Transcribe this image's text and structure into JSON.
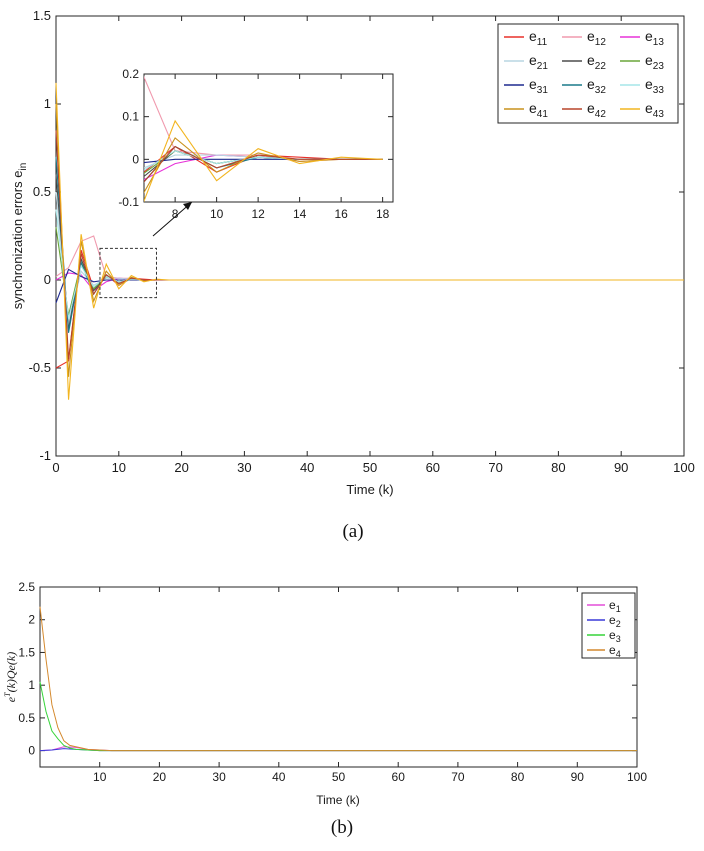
{
  "chart_data": [
    {
      "type": "line",
      "panel_label": "(a)",
      "xlabel": "Time (k)",
      "ylabel_main": "synchronization errors e",
      "ylabel_sub": "in",
      "xlim": [
        0,
        100
      ],
      "ylim": [
        -1,
        1.5
      ],
      "xticks": [
        0,
        10,
        20,
        30,
        40,
        50,
        60,
        70,
        80,
        90,
        100
      ],
      "yticks": [
        -1,
        -0.5,
        0,
        0.5,
        1,
        1.5
      ],
      "legend_position": "top-right",
      "legend_columns": 3,
      "series": [
        {
          "base": "e",
          "sub": "11",
          "color": "#e8302a",
          "x": [
            0,
            2,
            4,
            6,
            8,
            10,
            12,
            14,
            16,
            18,
            100
          ],
          "y": [
            -0.5,
            -0.46,
            0.17,
            -0.05,
            0.03,
            -0.03,
            0.01,
            0.005,
            0.0,
            0.0,
            0.0
          ]
        },
        {
          "base": "e",
          "sub": "12",
          "color": "#f09aae",
          "x": [
            0,
            2,
            4,
            6,
            8,
            10,
            12,
            14,
            16,
            18,
            100
          ],
          "y": [
            0.02,
            0.07,
            0.22,
            0.25,
            0.02,
            0.01,
            0.01,
            -0.005,
            0.0,
            0.0,
            0.0
          ]
        },
        {
          "base": "e",
          "sub": "13",
          "color": "#e733d8",
          "x": [
            0,
            2,
            4,
            6,
            8,
            10,
            12,
            14,
            16,
            18,
            100
          ],
          "y": [
            0.0,
            0.04,
            0.03,
            -0.06,
            -0.01,
            0.01,
            0.005,
            0.0,
            0.0,
            0.0,
            0.0
          ]
        },
        {
          "base": "e",
          "sub": "21",
          "color": "#b8d6e2",
          "x": [
            0,
            2,
            4,
            6,
            8,
            10,
            12,
            14,
            16,
            18,
            100
          ],
          "y": [
            0.5,
            -0.25,
            0.05,
            -0.03,
            0.01,
            0.01,
            0.005,
            0.0,
            0.0,
            0.0,
            0.0
          ]
        },
        {
          "base": "e",
          "sub": "22",
          "color": "#4d4d4d",
          "x": [
            0,
            2,
            4,
            6,
            8,
            10,
            12,
            14,
            16,
            18,
            100
          ],
          "y": [
            0.6,
            -0.28,
            0.12,
            -0.06,
            0.02,
            -0.01,
            0.005,
            0.0,
            0.0,
            0.0,
            0.0
          ]
        },
        {
          "base": "e",
          "sub": "23",
          "color": "#6aa53a",
          "x": [
            0,
            2,
            4,
            6,
            8,
            10,
            12,
            14,
            16,
            18,
            100
          ],
          "y": [
            0.3,
            -0.2,
            0.1,
            -0.05,
            0.02,
            -0.01,
            0.005,
            0.0,
            0.0,
            0.0,
            0.0
          ]
        },
        {
          "base": "e",
          "sub": "31",
          "color": "#1f2a8f",
          "x": [
            0,
            2,
            4,
            6,
            8,
            10,
            12,
            14,
            16,
            18,
            100
          ],
          "y": [
            -0.13,
            0.06,
            0.02,
            -0.01,
            0.0,
            0.0,
            0.0,
            0.0,
            0.0,
            0.0,
            0.0
          ]
        },
        {
          "base": "e",
          "sub": "32",
          "color": "#1a7a8a",
          "x": [
            0,
            2,
            4,
            6,
            8,
            10,
            12,
            14,
            16,
            18,
            100
          ],
          "y": [
            0.7,
            -0.3,
            0.1,
            -0.08,
            0.03,
            -0.02,
            0.005,
            0.0,
            0.0,
            0.0,
            0.0
          ]
        },
        {
          "base": "e",
          "sub": "33",
          "color": "#a6e6e8",
          "x": [
            0,
            2,
            4,
            6,
            8,
            10,
            12,
            14,
            16,
            18,
            100
          ],
          "y": [
            0.4,
            -0.22,
            0.08,
            -0.04,
            0.02,
            -0.01,
            0.005,
            0.0,
            0.0,
            0.0,
            0.0
          ]
        },
        {
          "base": "e",
          "sub": "41",
          "color": "#c8921d",
          "x": [
            0,
            2,
            4,
            6,
            8,
            10,
            12,
            14,
            16,
            18,
            100
          ],
          "y": [
            1.0,
            -0.55,
            0.22,
            -0.12,
            0.05,
            -0.03,
            0.015,
            -0.005,
            0.0,
            0.0,
            0.0
          ]
        },
        {
          "base": "e",
          "sub": "42",
          "color": "#b8452a",
          "x": [
            0,
            2,
            4,
            6,
            8,
            10,
            12,
            14,
            16,
            18,
            100
          ],
          "y": [
            0.85,
            -0.45,
            0.15,
            -0.08,
            0.03,
            -0.02,
            0.01,
            0.0,
            0.0,
            0.0,
            0.0
          ]
        },
        {
          "base": "e",
          "sub": "43",
          "color": "#f2b520",
          "x": [
            0,
            2,
            4,
            6,
            8,
            10,
            12,
            14,
            16,
            18,
            100
          ],
          "y": [
            1.12,
            -0.68,
            0.26,
            -0.16,
            0.09,
            -0.05,
            0.025,
            -0.01,
            0.005,
            0.0,
            0.0
          ]
        }
      ],
      "inset": {
        "xlim": [
          6.5,
          18.5
        ],
        "ylim": [
          -0.1,
          0.2
        ],
        "xticks": [
          8,
          10,
          12,
          14,
          16,
          18
        ],
        "yticks": [
          -0.1,
          0,
          0.1,
          0.2
        ],
        "zoom_box_x": [
          7,
          16
        ],
        "zoom_box_y": [
          -0.1,
          0.18
        ]
      }
    },
    {
      "type": "line",
      "panel_label": "(b)",
      "xlabel": "Time (k)",
      "ylabel": "e^T(k)Qe(k)",
      "xlim": [
        0,
        100
      ],
      "ylim": [
        -0.25,
        2.5
      ],
      "xticks": [
        10,
        20,
        30,
        40,
        50,
        60,
        70,
        80,
        90,
        100
      ],
      "yticks": [
        0,
        0.5,
        1,
        1.5,
        2,
        2.5
      ],
      "legend_position": "top-right",
      "series": [
        {
          "base": "e",
          "sub": "1",
          "color": "#e34fd8",
          "x": [
            0,
            2,
            4,
            6,
            8,
            10,
            12,
            100
          ],
          "y": [
            0.0,
            0.01,
            0.06,
            0.05,
            0.02,
            0.01,
            0.0,
            0.0
          ]
        },
        {
          "base": "e",
          "sub": "2",
          "color": "#3a3ad8",
          "x": [
            0,
            2,
            4,
            6,
            8,
            10,
            12,
            100
          ],
          "y": [
            0.0,
            0.01,
            0.03,
            0.02,
            0.01,
            0.0,
            0.0,
            0.0
          ]
        },
        {
          "base": "e",
          "sub": "3",
          "color": "#36d43a",
          "x": [
            0,
            1,
            2,
            3,
            4,
            5,
            6,
            8,
            10,
            12,
            100
          ],
          "y": [
            1.05,
            0.6,
            0.3,
            0.18,
            0.08,
            0.04,
            0.02,
            0.01,
            0.0,
            0.0,
            0.0
          ]
        },
        {
          "base": "e",
          "sub": "4",
          "color": "#d4892e",
          "x": [
            0,
            1,
            2,
            3,
            4,
            5,
            6,
            7,
            8,
            10,
            12,
            100
          ],
          "y": [
            2.2,
            1.4,
            0.7,
            0.35,
            0.15,
            0.08,
            0.06,
            0.04,
            0.02,
            0.01,
            0.0,
            0.0
          ]
        }
      ]
    }
  ]
}
